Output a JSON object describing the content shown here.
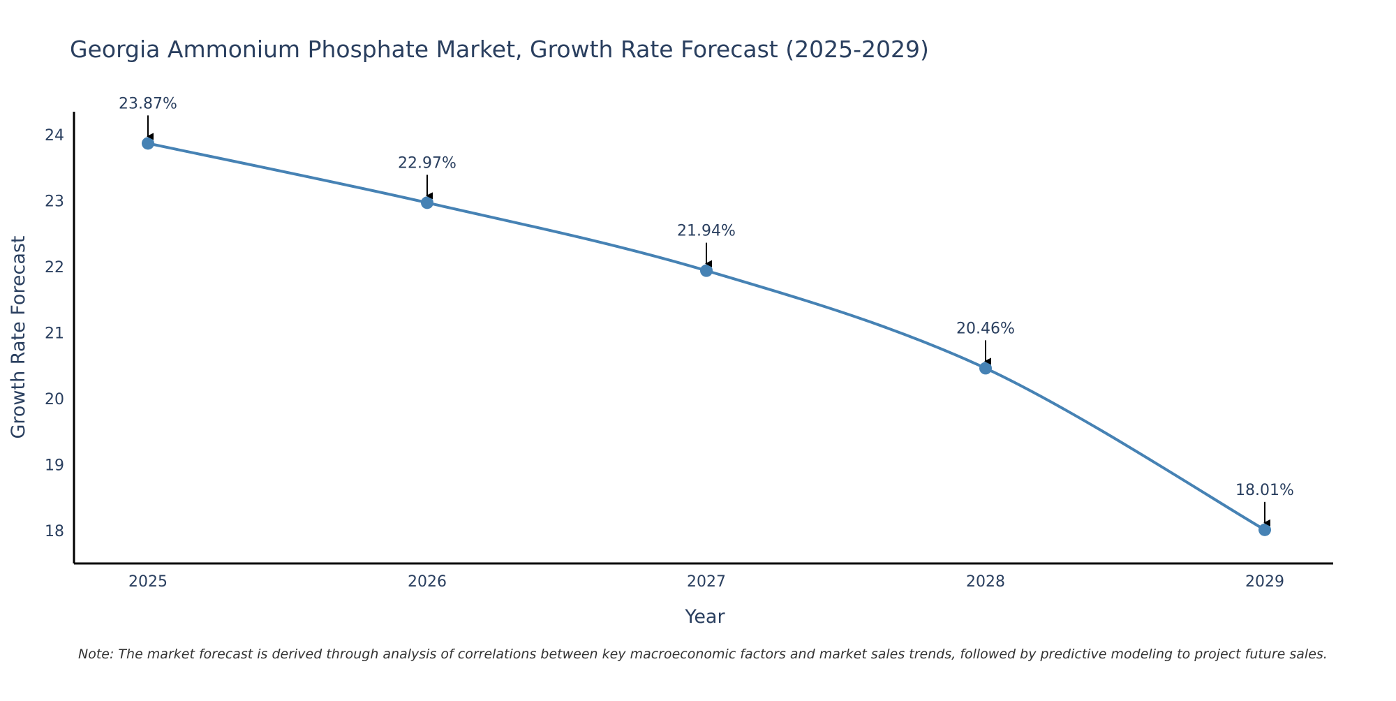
{
  "chart_data": {
    "type": "line",
    "title": "Georgia Ammonium Phosphate Market, Growth Rate Forecast (2025-2029)",
    "xlabel": "Year",
    "ylabel": "Growth Rate Forecast",
    "categories": [
      "2025",
      "2026",
      "2027",
      "2028",
      "2029"
    ],
    "series": [
      {
        "name": "Growth Rate Forecast",
        "values": [
          23.87,
          22.97,
          21.94,
          20.46,
          18.01
        ],
        "labels": [
          "23.87%",
          "22.97%",
          "21.94%",
          "20.46%",
          "18.01%"
        ]
      }
    ],
    "yticks": [
      "18",
      "19",
      "20",
      "21",
      "22",
      "23",
      "24"
    ],
    "ylim": [
      17.5,
      24.35
    ],
    "grid": false,
    "legend": "none",
    "line_color": "#4682B4",
    "text_color": "#2a3f5f",
    "note": "Note: The market forecast is derived through analysis of correlations between key macroeconomic factors and market sales trends, followed by predictive modeling to project future sales."
  }
}
